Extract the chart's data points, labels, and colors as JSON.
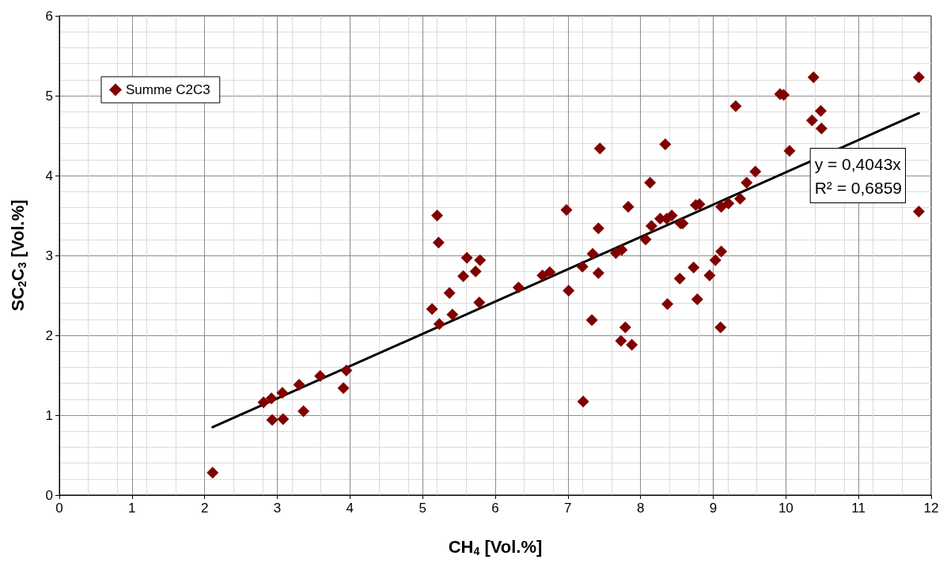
{
  "chart_data": {
    "type": "scatter",
    "xlabel": "CH$_{4}$ [Vol.%]",
    "ylabel": "SC$_{2}$C$_{3}$ [Vol.%]",
    "xlim": [
      0,
      12
    ],
    "xticks": [
      0,
      1,
      2,
      3,
      4,
      5,
      6,
      7,
      8,
      9,
      10,
      11,
      12
    ],
    "ylim": [
      0,
      6
    ],
    "yticks": [
      0,
      1,
      2,
      3,
      4,
      5,
      6
    ],
    "grid": true,
    "legend": "top left",
    "marker": "diamond",
    "annotations": [
      "y = 0,4043x\nR² = 0,6859"
    ],
    "series": [
      {
        "name": "Summe C2C3",
        "color": "#800000",
        "x": [
          2.11,
          2.81,
          2.92,
          2.93,
          3.07,
          3.08,
          3.3,
          3.36,
          3.59,
          3.91,
          3.95,
          5.13,
          5.2,
          5.22,
          5.23,
          5.37,
          5.41,
          5.56,
          5.61,
          5.73,
          5.79,
          5.78,
          6.32,
          6.65,
          6.75,
          6.98,
          7.01,
          7.2,
          7.21,
          7.33,
          7.34,
          7.42,
          7.42,
          7.44,
          7.73,
          7.79,
          7.88,
          7.66,
          7.74,
          7.83,
          8.13,
          8.07,
          8.15,
          8.27,
          8.36,
          8.43,
          8.34,
          8.37,
          8.55,
          8.58,
          8.54,
          8.73,
          8.78,
          8.76,
          8.81,
          8.95,
          9.03,
          9.11,
          9.1,
          9.11,
          9.21,
          9.37,
          9.46,
          9.58,
          9.31,
          9.92,
          9.97,
          10.38,
          11.83,
          10.48,
          10.36,
          10.49,
          10.05,
          11.83
        ],
        "values": [
          0.28,
          1.16,
          1.21,
          0.94,
          1.28,
          0.95,
          1.38,
          1.05,
          1.49,
          1.34,
          1.56,
          2.33,
          3.5,
          3.16,
          2.14,
          2.53,
          2.26,
          2.74,
          2.97,
          2.8,
          2.94,
          2.41,
          2.6,
          2.75,
          2.79,
          3.57,
          2.56,
          2.86,
          1.17,
          2.19,
          3.02,
          2.78,
          3.34,
          4.34,
          1.93,
          2.1,
          1.88,
          3.03,
          3.07,
          3.61,
          3.91,
          3.2,
          3.37,
          3.46,
          3.46,
          3.5,
          4.39,
          2.39,
          3.4,
          3.4,
          2.71,
          2.85,
          2.45,
          3.63,
          3.64,
          2.75,
          2.94,
          3.05,
          2.1,
          3.61,
          3.65,
          3.71,
          3.91,
          4.05,
          4.87,
          5.02,
          5.01,
          5.23,
          5.23,
          4.81,
          4.69,
          4.59,
          4.31,
          3.55
        ]
      },
      {
        "type": "line",
        "color": "#000000",
        "marker": "none",
        "line_style": "solid",
        "x": [
          2.11,
          11.83
        ],
        "values": [
          0.85,
          4.78
        ]
      }
    ]
  }
}
